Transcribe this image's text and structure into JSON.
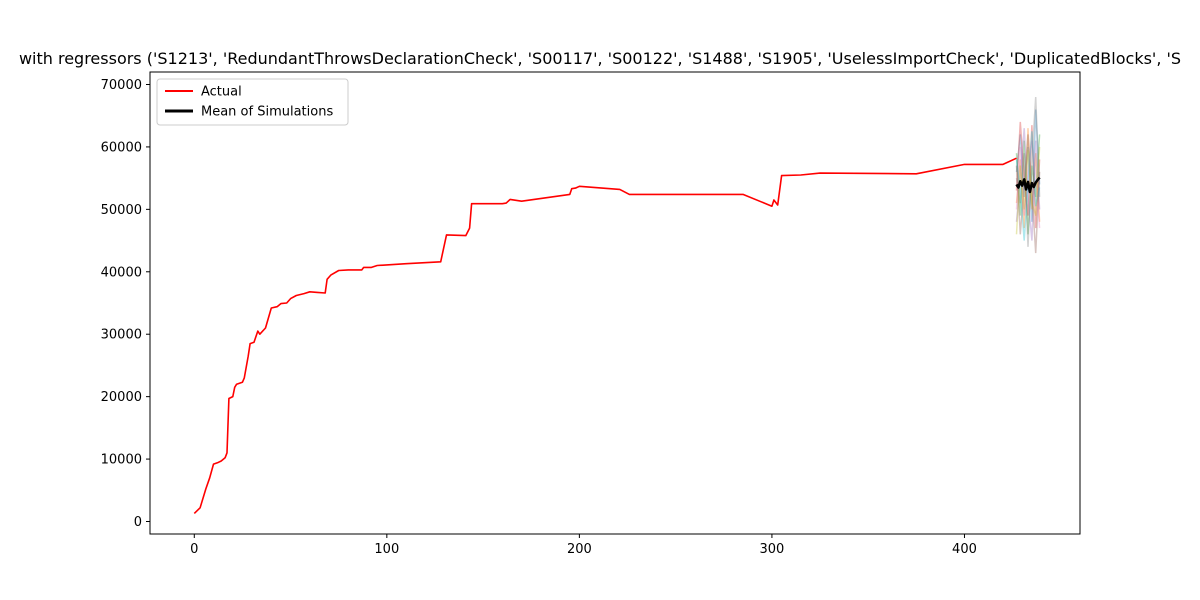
{
  "chart_data": {
    "type": "line",
    "title": "with regressors ('S1213', 'RedundantThrowsDeclarationCheck', 'S00117', 'S00122', 'S1488', 'S1905', 'UselessImportCheck', 'DuplicatedBlocks', 'S",
    "xlabel": "",
    "ylabel": "",
    "xlim": [
      -23,
      460
    ],
    "ylim": [
      -2000,
      72000
    ],
    "x_ticks": [
      0,
      100,
      200,
      300,
      400
    ],
    "x_tick_labels": [
      "0",
      "100",
      "200",
      "300",
      "400"
    ],
    "y_ticks": [
      0,
      10000,
      20000,
      30000,
      40000,
      50000,
      60000,
      70000
    ],
    "y_tick_labels": [
      "0",
      "10000",
      "20000",
      "30000",
      "40000",
      "50000",
      "60000",
      "70000"
    ],
    "legend": {
      "position": "top-left",
      "entries": [
        {
          "label": "Actual",
          "color": "#ff0000"
        },
        {
          "label": "Mean of Simulations",
          "color": "#000000"
        }
      ]
    },
    "series": [
      {
        "name": "Actual",
        "color": "#ff0000",
        "points": [
          [
            0,
            1300
          ],
          [
            3,
            2200
          ],
          [
            6,
            5200
          ],
          [
            8,
            7000
          ],
          [
            10,
            9200
          ],
          [
            12,
            9400
          ],
          [
            14,
            9700
          ],
          [
            16,
            10200
          ],
          [
            17,
            11000
          ],
          [
            18,
            19700
          ],
          [
            20,
            20000
          ],
          [
            21,
            21500
          ],
          [
            22,
            22000
          ],
          [
            25,
            22300
          ],
          [
            26,
            23000
          ],
          [
            28,
            26500
          ],
          [
            29,
            28500
          ],
          [
            31,
            28700
          ],
          [
            33,
            30500
          ],
          [
            34,
            30000
          ],
          [
            37,
            31000
          ],
          [
            40,
            34200
          ],
          [
            43,
            34400
          ],
          [
            45,
            34900
          ],
          [
            48,
            35000
          ],
          [
            50,
            35700
          ],
          [
            53,
            36200
          ],
          [
            57,
            36500
          ],
          [
            60,
            36800
          ],
          [
            64,
            36700
          ],
          [
            68,
            36600
          ],
          [
            69,
            38800
          ],
          [
            71,
            39500
          ],
          [
            75,
            40200
          ],
          [
            80,
            40300
          ],
          [
            87,
            40300
          ],
          [
            88,
            40700
          ],
          [
            92,
            40700
          ],
          [
            95,
            41000
          ],
          [
            100,
            41100
          ],
          [
            110,
            41300
          ],
          [
            128,
            41600
          ],
          [
            131,
            45900
          ],
          [
            141,
            45800
          ],
          [
            143,
            47000
          ],
          [
            144,
            50900
          ],
          [
            160,
            50900
          ],
          [
            162,
            51000
          ],
          [
            164,
            51600
          ],
          [
            170,
            51300
          ],
          [
            195,
            52400
          ],
          [
            196,
            53300
          ],
          [
            198,
            53400
          ],
          [
            200,
            53700
          ],
          [
            221,
            53200
          ],
          [
            226,
            52400
          ],
          [
            285,
            52400
          ],
          [
            300,
            50500
          ],
          [
            301,
            51500
          ],
          [
            303,
            50700
          ],
          [
            305,
            55400
          ],
          [
            315,
            55500
          ],
          [
            325,
            55800
          ],
          [
            375,
            55700
          ],
          [
            400,
            57200
          ],
          [
            420,
            57200
          ],
          [
            427,
            58200
          ]
        ]
      },
      {
        "name": "Mean of Simulations",
        "color": "#000000",
        "points": [
          [
            427,
            54000
          ],
          [
            428,
            53500
          ],
          [
            429,
            54500
          ],
          [
            430,
            53800
          ],
          [
            431,
            54800
          ],
          [
            432,
            53200
          ],
          [
            433,
            54400
          ],
          [
            434,
            52800
          ],
          [
            435,
            54200
          ],
          [
            436,
            53600
          ],
          [
            437,
            54300
          ],
          [
            438,
            54700
          ],
          [
            439,
            55100
          ]
        ]
      }
    ],
    "simulation_band": {
      "x_range": [
        427,
        439
      ],
      "y_range": [
        42500,
        68000
      ],
      "colors": [
        "#1f77b4",
        "#ff7f0e",
        "#2ca02c",
        "#d62728",
        "#9467bd",
        "#8c564b",
        "#e377c2",
        "#7f7f7f",
        "#bcbd22",
        "#17becf"
      ],
      "paths": [
        [
          [
            427,
            56000
          ],
          [
            429,
            62000
          ],
          [
            431,
            52000
          ],
          [
            433,
            60000
          ],
          [
            435,
            48000
          ],
          [
            437,
            66000
          ],
          [
            439,
            54000
          ]
        ],
        [
          [
            427,
            51000
          ],
          [
            429,
            58000
          ],
          [
            431,
            47000
          ],
          [
            433,
            63000
          ],
          [
            435,
            50000
          ],
          [
            437,
            59000
          ],
          [
            439,
            48000
          ]
        ],
        [
          [
            427,
            59000
          ],
          [
            429,
            49000
          ],
          [
            431,
            61000
          ],
          [
            433,
            46000
          ],
          [
            435,
            57000
          ],
          [
            437,
            52000
          ],
          [
            439,
            62000
          ]
        ],
        [
          [
            427,
            53000
          ],
          [
            429,
            64000
          ],
          [
            431,
            55000
          ],
          [
            433,
            49000
          ],
          [
            435,
            63500
          ],
          [
            437,
            47000
          ],
          [
            439,
            58000
          ]
        ],
        [
          [
            427,
            48000
          ],
          [
            429,
            55000
          ],
          [
            431,
            63000
          ],
          [
            433,
            52000
          ],
          [
            435,
            45000
          ],
          [
            437,
            61000
          ],
          [
            439,
            50000
          ]
        ],
        [
          [
            427,
            57000
          ],
          [
            429,
            46000
          ],
          [
            431,
            54000
          ],
          [
            433,
            62000
          ],
          [
            435,
            53000
          ],
          [
            437,
            43000
          ],
          [
            439,
            56000
          ]
        ],
        [
          [
            427,
            50000
          ],
          [
            429,
            60000
          ],
          [
            431,
            49000
          ],
          [
            433,
            56000
          ],
          [
            435,
            61000
          ],
          [
            437,
            55000
          ],
          [
            439,
            47000
          ]
        ],
        [
          [
            427,
            55000
          ],
          [
            429,
            51000
          ],
          [
            431,
            59000
          ],
          [
            433,
            44000
          ],
          [
            435,
            58000
          ],
          [
            437,
            68000
          ],
          [
            439,
            52000
          ]
        ],
        [
          [
            427,
            46000
          ],
          [
            429,
            57000
          ],
          [
            431,
            50000
          ],
          [
            433,
            59500
          ],
          [
            435,
            51000
          ],
          [
            437,
            49000
          ],
          [
            439,
            60000
          ]
        ],
        [
          [
            427,
            58000
          ],
          [
            429,
            53000
          ],
          [
            431,
            45000
          ],
          [
            433,
            54000
          ],
          [
            435,
            62500
          ],
          [
            437,
            50500
          ],
          [
            439,
            53500
          ]
        ]
      ]
    }
  }
}
